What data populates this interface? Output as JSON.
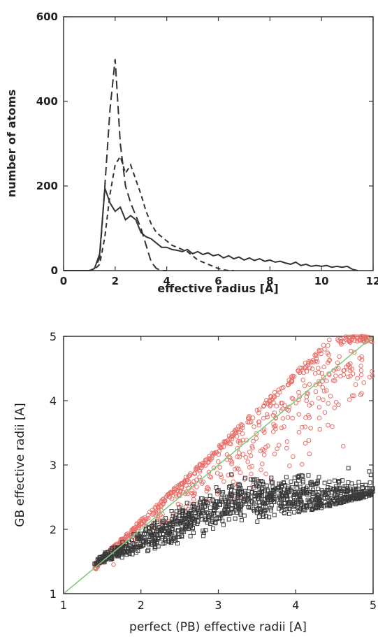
{
  "chart_data": [
    {
      "type": "line",
      "title": "",
      "xlabel": "effective radius [A]",
      "ylabel": "number of atoms",
      "xlim": [
        0,
        12
      ],
      "ylim": [
        0,
        600
      ],
      "xticks": [
        "0",
        "2",
        "4",
        "6",
        "8",
        "10",
        "12"
      ],
      "yticks": [
        "0",
        "200",
        "400",
        "600"
      ],
      "grid": false,
      "legend": "none",
      "series": [
        {
          "style": "solid",
          "x": [
            0,
            1.0,
            1.2,
            1.4,
            1.6,
            1.8,
            2.0,
            2.2,
            2.4,
            2.6,
            2.8,
            3.0,
            3.2,
            3.4,
            3.6,
            3.8,
            4.0,
            4.2,
            4.4,
            4.6,
            4.8,
            5.0,
            5.2,
            5.4,
            5.6,
            5.8,
            6.0,
            6.2,
            6.4,
            6.6,
            6.8,
            7.0,
            7.2,
            7.4,
            7.6,
            7.8,
            8.0,
            8.2,
            8.4,
            8.6,
            8.8,
            9.0,
            9.2,
            9.4,
            9.6,
            9.8,
            10.0,
            10.2,
            10.4,
            10.6,
            10.8,
            11.0,
            11.2,
            11.4
          ],
          "y": [
            0,
            0,
            5,
            40,
            195,
            160,
            140,
            150,
            120,
            130,
            120,
            90,
            80,
            75,
            65,
            55,
            55,
            50,
            48,
            45,
            50,
            40,
            45,
            38,
            42,
            35,
            38,
            30,
            35,
            28,
            32,
            25,
            30,
            24,
            28,
            22,
            25,
            20,
            22,
            18,
            15,
            20,
            12,
            15,
            10,
            12,
            10,
            12,
            8,
            10,
            8,
            10,
            3,
            0
          ]
        },
        {
          "style": "long-dash",
          "x": [
            0,
            1.0,
            1.2,
            1.4,
            1.6,
            1.8,
            2.0,
            2.2,
            2.4,
            2.6,
            2.8,
            3.0,
            3.2,
            3.4,
            3.6,
            3.8,
            4.0
          ],
          "y": [
            0,
            0,
            5,
            30,
            200,
            380,
            500,
            300,
            200,
            160,
            130,
            100,
            60,
            20,
            5,
            0,
            0
          ]
        },
        {
          "style": "short-dash",
          "x": [
            0,
            1.0,
            1.2,
            1.4,
            1.6,
            1.8,
            2.0,
            2.2,
            2.4,
            2.6,
            2.8,
            3.0,
            3.2,
            3.4,
            3.6,
            3.8,
            4.0,
            4.2,
            4.4,
            4.6,
            4.8,
            5.0,
            5.2,
            5.4,
            5.6,
            5.8,
            6.0,
            6.2,
            6.4,
            6.6
          ],
          "y": [
            0,
            0,
            2,
            15,
            80,
            180,
            250,
            270,
            230,
            250,
            215,
            180,
            140,
            110,
            90,
            80,
            70,
            60,
            55,
            50,
            45,
            35,
            25,
            20,
            15,
            10,
            5,
            2,
            0,
            0
          ]
        }
      ]
    },
    {
      "type": "scatter",
      "title": "",
      "xlabel": "perfect (PB) effective radii [A]",
      "ylabel": "GB effective radii [A]",
      "xlim": [
        1,
        5
      ],
      "ylim": [
        1,
        5
      ],
      "xticks": [
        "1",
        "2",
        "3",
        "4",
        "5"
      ],
      "yticks": [
        "1",
        "2",
        "3",
        "4",
        "5"
      ],
      "grid": false,
      "legend": "none",
      "diagonal": {
        "x": [
          1,
          5
        ],
        "y": [
          1,
          5
        ],
        "color": "#7dc97d"
      },
      "series": [
        {
          "marker": "open-circle",
          "color": "#e8706a",
          "points_generated": 700,
          "x_range": [
            1.4,
            5.0
          ],
          "y_min_at_x": "max(1.45, 0.95 + 0.3*x)",
          "y_max_at_x": "min(5.0, 1.0 + 1.15*(x-1))",
          "y_center_at_x": "1.0*x + 0.15"
        },
        {
          "marker": "open-square",
          "color": "#3a3a3a",
          "points_generated": 1100,
          "x_range": [
            1.4,
            5.0
          ],
          "y_min_at_x": "1.45 + 0.3*(x-1.4)",
          "y_max_at_x": "min(3.3, x + 0.1)",
          "y_center_at_x": "min(2.5, 0.55*x + 0.7)"
        }
      ]
    }
  ]
}
